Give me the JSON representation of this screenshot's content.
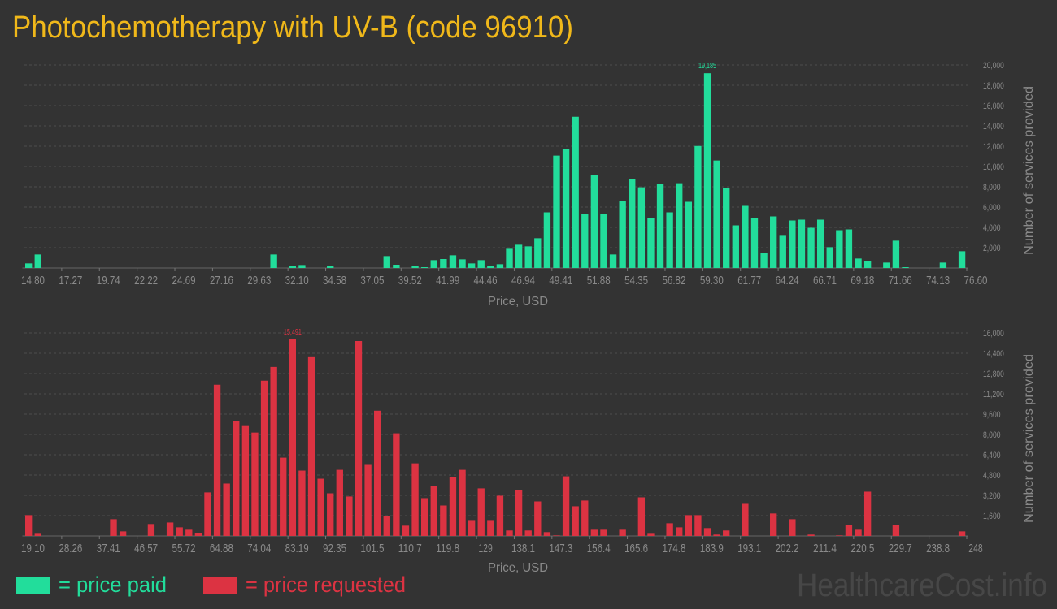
{
  "title": "Photochemotherapy with UV-B (code 96910)",
  "colors": {
    "paid": "#22dd9b",
    "requested": "#dc3342",
    "title": "#f0b81a",
    "background": "#333333"
  },
  "legend": {
    "paid_label": "= price paid",
    "requested_label": "= price requested"
  },
  "watermark": "HealthcareCost.info",
  "chart_data": [
    {
      "type": "bar",
      "series": [
        {
          "name": "price paid",
          "values": [
            452,
            1330,
            0,
            0,
            0,
            0,
            0,
            0,
            0,
            0,
            0,
            0,
            0,
            0,
            0,
            0,
            0,
            0,
            0,
            0,
            0,
            0,
            0,
            0,
            0,
            0,
            1330,
            0,
            160,
            290,
            0,
            0,
            160,
            0,
            0,
            0,
            0,
            0,
            1170,
            320,
            0,
            160,
            80,
            770,
            880,
            1250,
            850,
            450,
            770,
            210,
            370,
            1890,
            2290,
            2130,
            2930,
            5480,
            11070,
            11700,
            14900,
            5320,
            9150,
            5320,
            1330,
            6600,
            8750,
            7950,
            4920,
            8270,
            5480,
            8350,
            6520,
            12020,
            19185,
            10590,
            7870,
            4200,
            6120,
            4920,
            1490,
            5080,
            3170,
            4680,
            4760,
            3960,
            4760,
            2050,
            3720,
            3800,
            930,
            690,
            0,
            530,
            2690,
            80,
            0,
            0,
            0,
            530,
            0,
            1650
          ]
        }
      ],
      "xlim": [
        14.8,
        76.6
      ],
      "x_tick_labels": [
        "14.80",
        "17.27",
        "19.74",
        "22.22",
        "24.69",
        "27.16",
        "29.63",
        "32.10",
        "34.58",
        "37.05",
        "39.52",
        "41.99",
        "44.46",
        "46.94",
        "49.41",
        "51.88",
        "54.35",
        "56.82",
        "59.30",
        "61.77",
        "64.24",
        "66.71",
        "69.18",
        "71.66",
        "74.13",
        "76.60"
      ],
      "ylim": [
        0,
        20000
      ],
      "y_tick_labels": [
        "2,000",
        "4,000",
        "6,000",
        "8,000",
        "10,000",
        "12,000",
        "14,000",
        "16,000",
        "18,000",
        "20,000"
      ],
      "xlabel": "Price, USD",
      "ylabel": "Number of services provided",
      "peak_label": "19,185",
      "grid": true
    },
    {
      "type": "bar",
      "series": [
        {
          "name": "price requested",
          "values": [
            1640,
            170,
            0,
            0,
            0,
            0,
            0,
            0,
            0,
            1320,
            360,
            0,
            0,
            940,
            0,
            1060,
            680,
            490,
            230,
            3430,
            11920,
            4130,
            9040,
            8660,
            8150,
            12240,
            13320,
            6170,
            15491,
            5150,
            14090,
            4510,
            3360,
            5210,
            3110,
            15360,
            5600,
            9870,
            1570,
            8090,
            810,
            5720,
            2980,
            3940,
            2400,
            4640,
            5210,
            1190,
            3750,
            1190,
            3170,
            430,
            3620,
            430,
            2720,
            300,
            40,
            4700,
            2340,
            2790,
            490,
            490,
            0,
            490,
            0,
            3040,
            170,
            0,
            1000,
            680,
            1640,
            1640,
            620,
            110,
            430,
            0,
            2530,
            0,
            0,
            1770,
            0,
            1320,
            0,
            110,
            0,
            0,
            40,
            870,
            490,
            3490,
            0,
            0,
            870,
            0,
            0,
            0,
            0,
            0,
            0,
            360
          ]
        }
      ],
      "xlim": [
        19.1,
        248
      ],
      "x_tick_labels": [
        "19.10",
        "28.26",
        "37.41",
        "46.57",
        "55.72",
        "64.88",
        "74.04",
        "83.19",
        "92.35",
        "101.5",
        "110.7",
        "119.8",
        "129",
        "138.1",
        "147.3",
        "156.4",
        "165.6",
        "174.8",
        "183.9",
        "193.1",
        "202.2",
        "211.4",
        "220.5",
        "229.7",
        "238.8",
        "248"
      ],
      "ylim": [
        0,
        16000
      ],
      "y_tick_labels": [
        "1,600",
        "3,200",
        "4,800",
        "6,400",
        "8,000",
        "9,600",
        "11,200",
        "12,800",
        "14,400",
        "16,000"
      ],
      "xlabel": "Price, USD",
      "ylabel": "Number of services provided",
      "peak_label": "15,491",
      "grid": true
    }
  ]
}
